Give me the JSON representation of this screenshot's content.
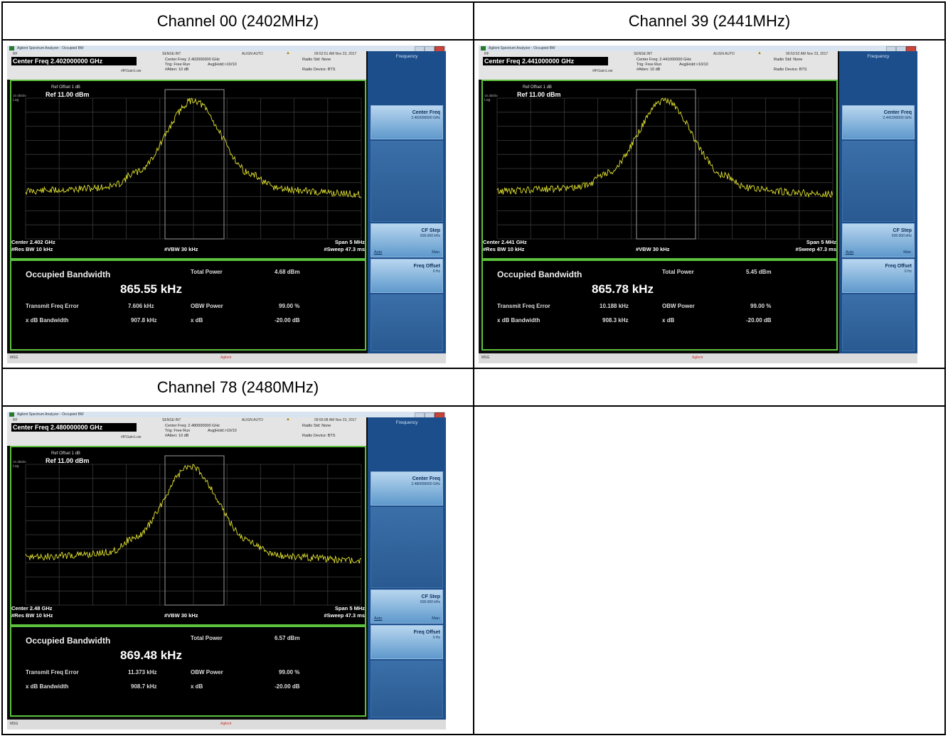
{
  "page": {
    "rows": [
      {
        "headers": [
          "Channel 00 (2402MHz)",
          "Channel 39 (2441MHz)"
        ]
      },
      {
        "headers": [
          "Channel 78 (2480MHz)",
          ""
        ]
      }
    ]
  },
  "common": {
    "window_title": "Agilent Spectrum Analyzer - Occupied BW",
    "input_label": "RF",
    "mode_text": "SENSE:INT",
    "align_text": "ALIGN AUTO",
    "trig_text": "Trig: Free Run",
    "avg_text": "Avg|Hold:>10/10",
    "atten_text": "#Atten: 10 dB",
    "gain_text": "#IFGain:Low",
    "radio_std": "Radio Std: None",
    "radio_device": "Radio Device: BTS",
    "ref_offset": "Ref Offset 1 dB",
    "ref_value": "Ref 11.00 dBm",
    "scale": "10 dB/div",
    "log": "Log",
    "span": "Span 5 MHz",
    "res_bw": "#Res BW  10 kHz",
    "vbw": "#VBW  30 kHz",
    "sweep": "#Sweep  47.3 ms",
    "occupied_label": "Occupied Bandwidth",
    "total_power_label": "Total Power",
    "tx_freq_err_label": "Transmit Freq Error",
    "obw_power_label": "OBW Power",
    "obw_power_value": "99.00 %",
    "xdb_bw_label": "x dB Bandwidth",
    "xdb_label": "x dB",
    "xdb_value": "-20.00 dB",
    "status_msg": "MSG",
    "agilent": "Agilent",
    "softkeys": {
      "menu_title": "Frequency",
      "center_freq": "Center Freq",
      "cf_step": "CF Step",
      "cf_step_value": "500.000 kHz",
      "auto": "Auto",
      "man": "Man",
      "freq_offset": "Freq Offset",
      "freq_offset_value": "0 Hz"
    }
  },
  "shots": [
    {
      "center_freq_box": "Center Freq 2.402000000 GHz",
      "center_freq_small": "Center Freq: 2.402000000 GHz",
      "center_freq_key_value": "2.402000000 GHz",
      "time": "09:52:51 AM Nov 23, 2017",
      "center": "Center  2.402 GHz",
      "occupied_bw": "865.55 kHz",
      "total_power": "4.68 dBm",
      "tx_freq_error": "7.606 kHz",
      "xdb_bandwidth": "907.8 kHz"
    },
    {
      "center_freq_box": "Center Freq 2.441000000 GHz",
      "center_freq_small": "Center Freq: 2.441000000 GHz",
      "center_freq_key_value": "2.441000000 GHz",
      "time": "09:53:52 AM Nov 23, 2017",
      "center": "Center  2.441 GHz",
      "occupied_bw": "865.78 kHz",
      "total_power": "5.45 dBm",
      "tx_freq_error": "10.188 kHz",
      "xdb_bandwidth": "908.3 kHz"
    },
    {
      "center_freq_box": "Center Freq 2.480000000 GHz",
      "center_freq_small": "Center Freq: 2.480000000 GHz",
      "center_freq_key_value": "2.480000000 GHz",
      "time": "09:55:08 AM Nov 23, 2017",
      "center": "Center  2.48 GHz",
      "occupied_bw": "869.48 kHz",
      "total_power": "6.57 dBm",
      "tx_freq_error": "11.373 kHz",
      "xdb_bandwidth": "908.7 kHz"
    }
  ],
  "colors": {
    "trace": "#e0e030",
    "frame": "#5cc13c",
    "softkey_panel": "#1d4e8c"
  }
}
